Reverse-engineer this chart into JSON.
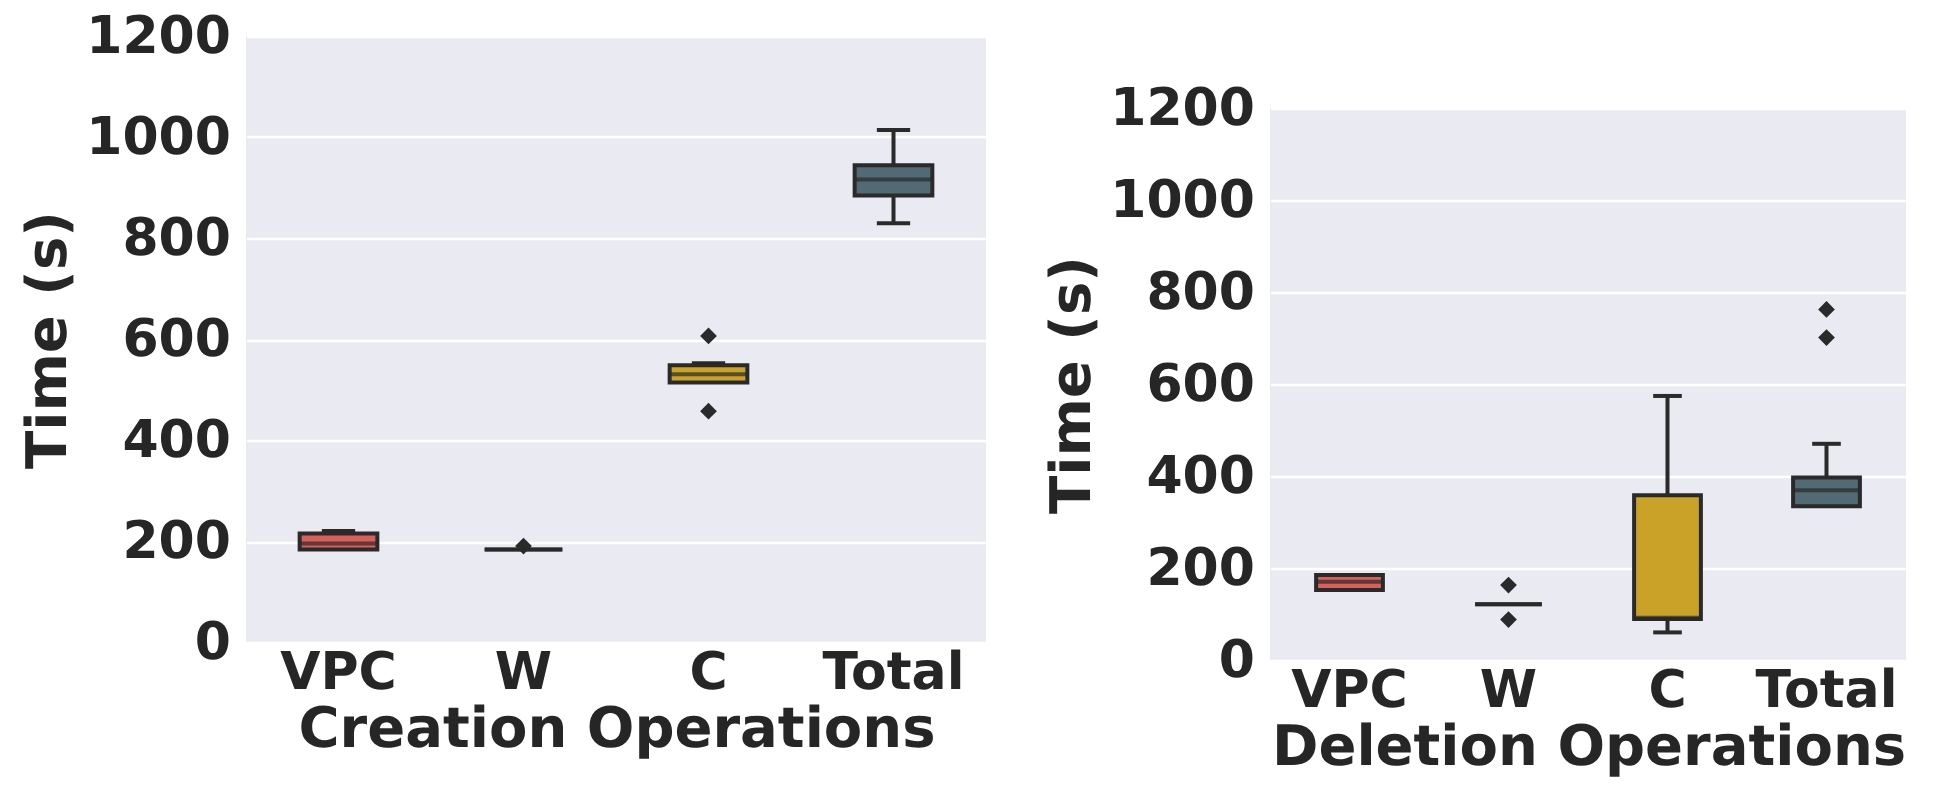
{
  "chart_data": [
    {
      "type": "box",
      "xlabel": "Creation Operations",
      "ylabel": "Time (s)",
      "categories": [
        "VPC",
        "W",
        "C",
        "Total"
      ],
      "colors": [
        "#d9605a",
        "#3a3a3a",
        "#c9a227",
        "#526a73"
      ],
      "boxes": [
        {
          "low": 183,
          "q1": 183,
          "median": 195,
          "q3": 215,
          "high": 220
        },
        {
          "low": 183,
          "q1": 183,
          "median": 183,
          "q3": 183,
          "high": 183,
          "outliers": [
            190
          ]
        },
        {
          "low": 514,
          "q1": 514,
          "median": 530,
          "q3": 548,
          "high": 552,
          "outliers": [
            606,
            457
          ]
        },
        {
          "low": 829,
          "q1": 884,
          "median": 916,
          "q3": 944,
          "high": 1014
        }
      ],
      "ylim": [
        0,
        1200
      ],
      "yticks": [
        0,
        200,
        400,
        600,
        800,
        1000,
        1200
      ],
      "grid": "y"
    },
    {
      "type": "box",
      "xlabel": "Deletion Operations",
      "ylabel": "Time (s)",
      "categories": [
        "VPC",
        "W",
        "C",
        "Total"
      ],
      "colors": [
        "#d9605a",
        "#3a3a3a",
        "#c9a227",
        "#526a73"
      ],
      "boxes": [
        {
          "low": 152,
          "q1": 152,
          "median": 170,
          "q3": 185,
          "high": 185
        },
        {
          "low": 121,
          "q1": 121,
          "median": 121,
          "q3": 121,
          "high": 121,
          "outliers": [
            163,
            88
          ]
        },
        {
          "low": 60,
          "q1": 89,
          "median": 92,
          "q3": 358,
          "high": 574
        },
        {
          "low": 334,
          "q1": 334,
          "median": 369,
          "q3": 397,
          "high": 470,
          "outliers": [
            762,
            701
          ]
        }
      ],
      "ylim": [
        0,
        1200
      ],
      "yticks": [
        0,
        200,
        400,
        600,
        800,
        1000,
        1200
      ],
      "grid": "y"
    }
  ]
}
